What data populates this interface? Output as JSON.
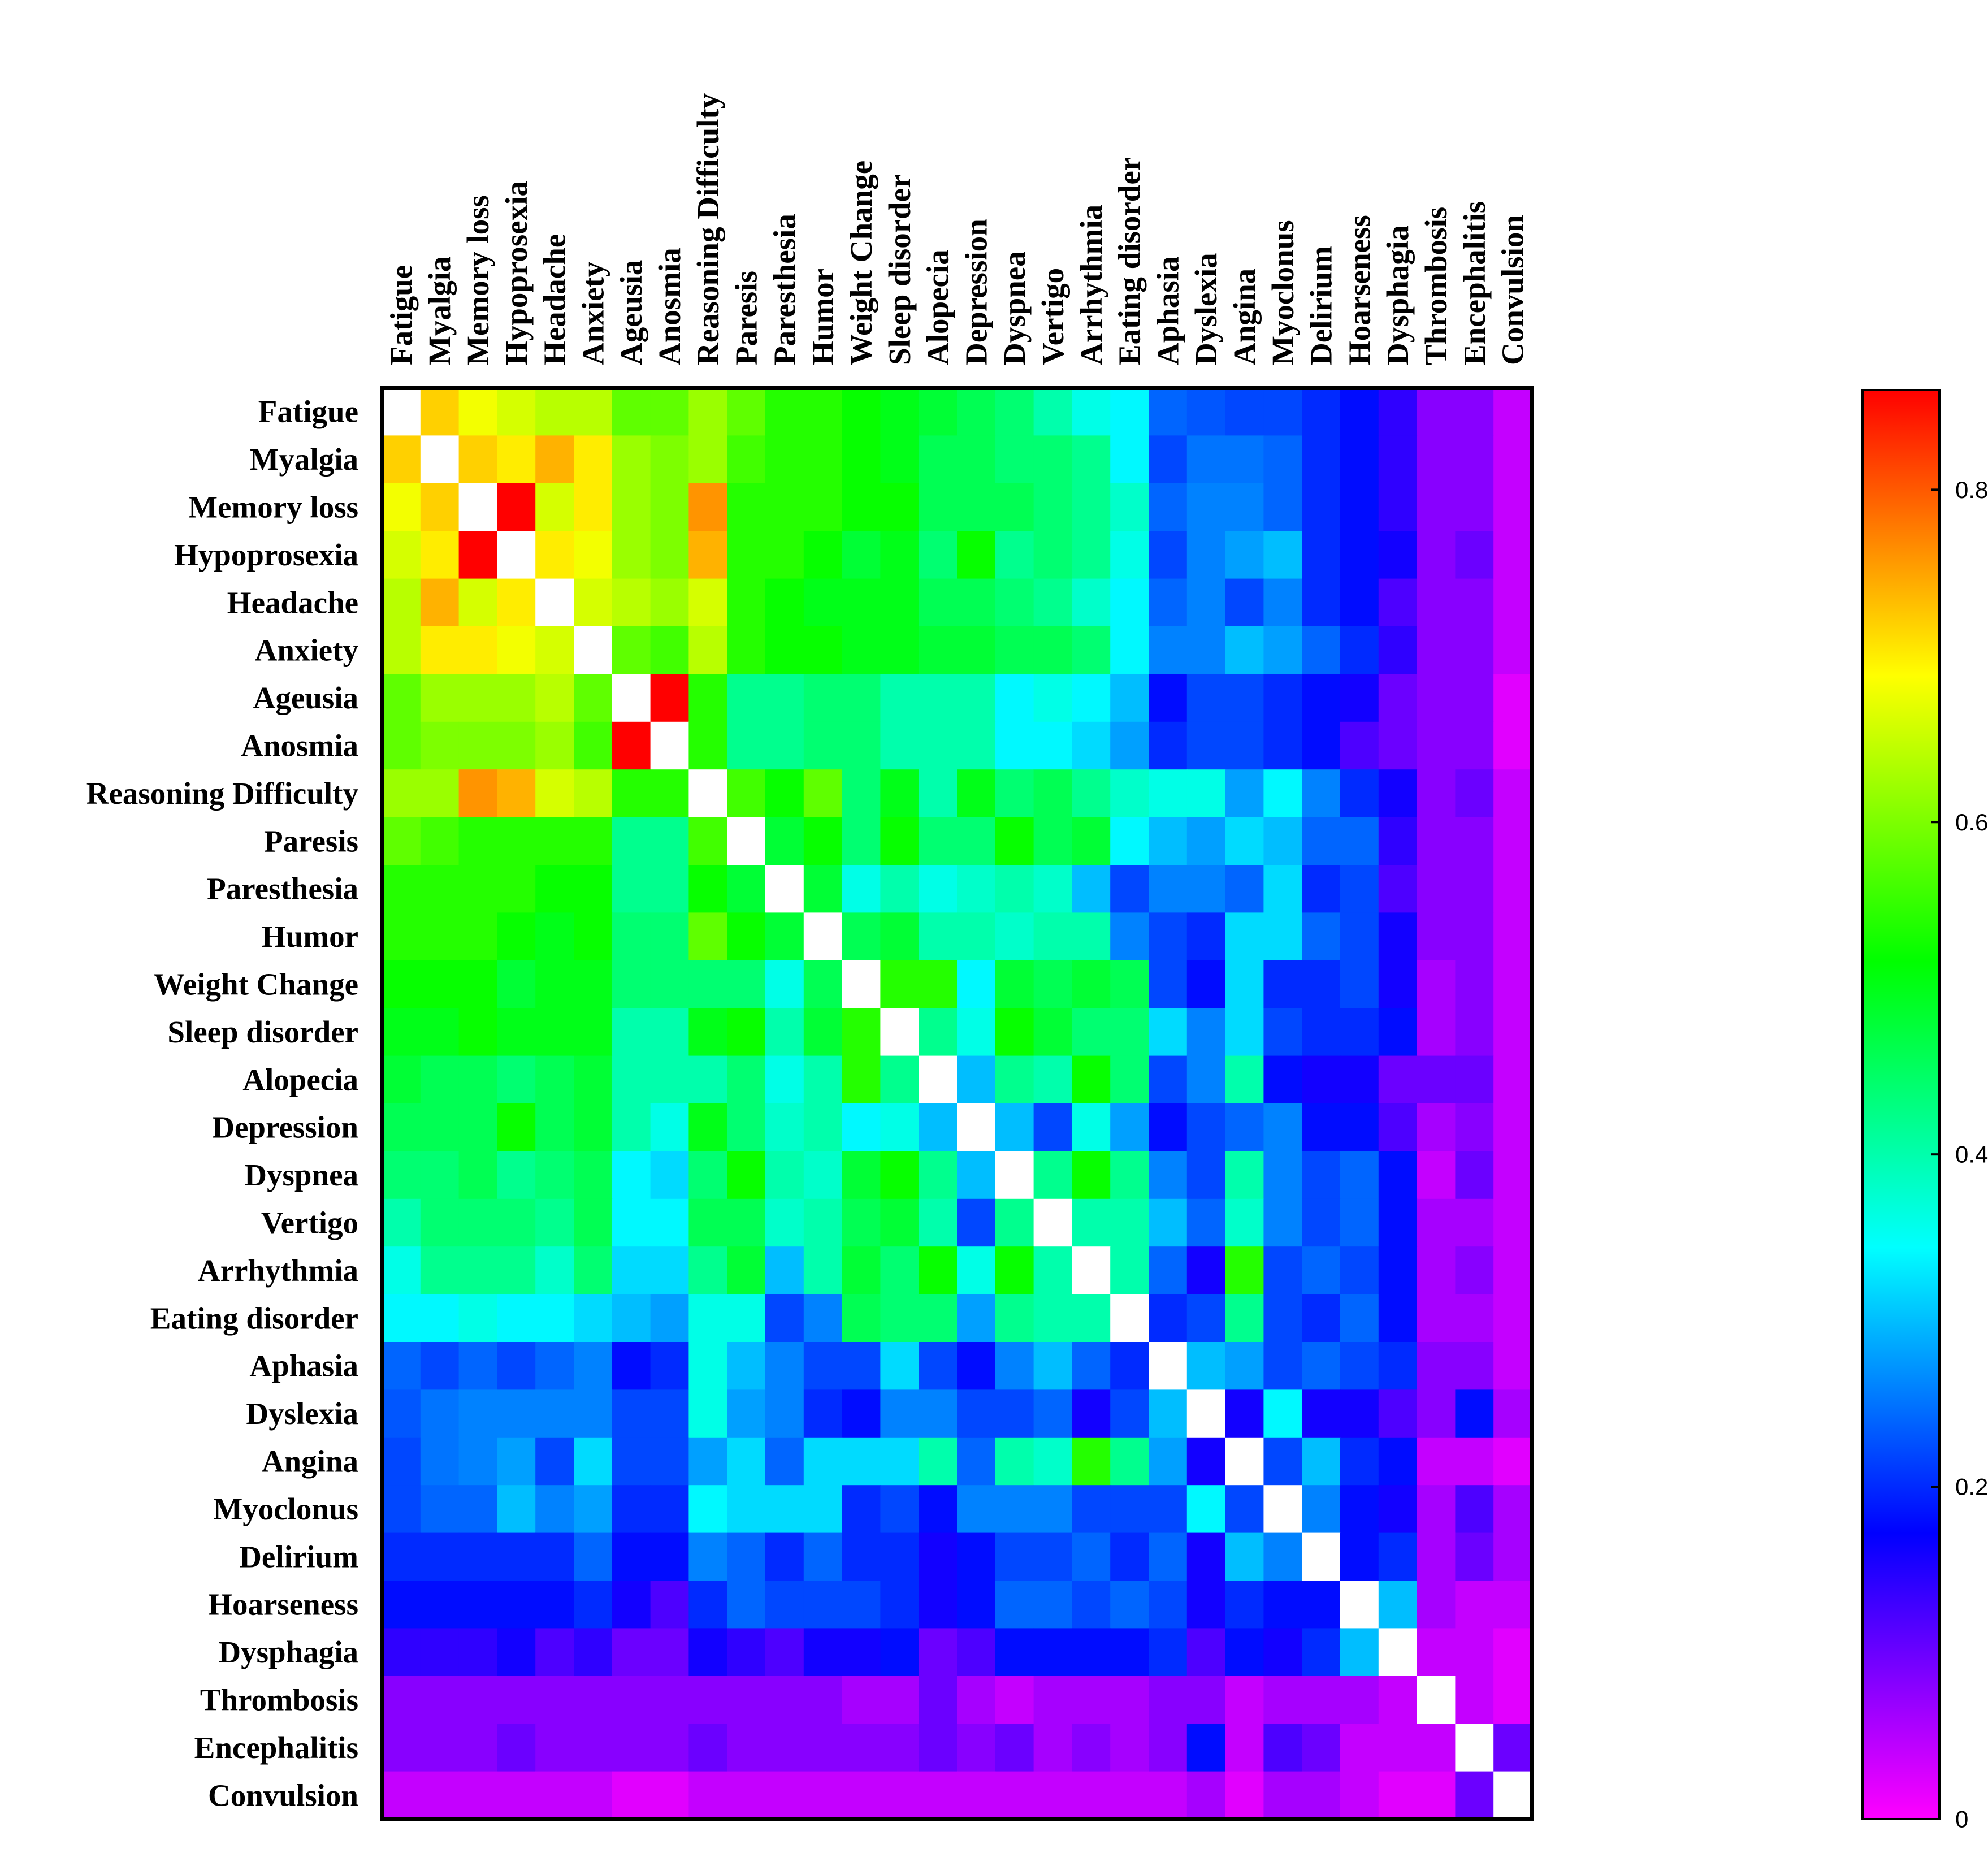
{
  "chart_data": {
    "type": "heatmap",
    "title": "",
    "xlabel": "",
    "ylabel": "",
    "labels": [
      "Fatigue",
      "Myalgia",
      "Memory loss",
      "Hypoprosexia",
      "Headache",
      "Anxiety",
      "Ageusia",
      "Anosmia",
      "Reasoning Difficulty",
      "Paresis",
      "Paresthesia",
      "Humor",
      "Weight Change",
      "Sleep disorder",
      "Alopecia",
      "Depression",
      "Dyspnea",
      "Vertigo",
      "Arrhythmia",
      "Eating disorder",
      "Aphasia",
      "Dyslexia",
      "Angina",
      "Myoclonus",
      "Delirium",
      "Hoarseness",
      "Dysphagia",
      "Thrombosis",
      "Encephalitis",
      "Convulsion"
    ],
    "diagonal": "blank",
    "colorbar": {
      "range": [
        0,
        0.86
      ],
      "ticks": [
        0,
        0.2,
        0.4,
        0.6,
        0.8
      ],
      "tick_labels": [
        "0",
        "0.2",
        "0.4",
        "0.6",
        "0.8"
      ],
      "colormap": [
        "#ff00ff",
        "#0000ff",
        "#00ffff",
        "#00ff00",
        "#ffff00",
        "#ff0000"
      ]
    },
    "values": [
      [
        null,
        0.72,
        0.68,
        0.66,
        0.64,
        0.64,
        0.58,
        0.58,
        0.62,
        0.58,
        0.54,
        0.54,
        0.52,
        0.5,
        0.48,
        0.46,
        0.44,
        0.4,
        0.36,
        0.34,
        0.24,
        0.23,
        0.22,
        0.22,
        0.2,
        0.18,
        0.14,
        0.08,
        0.08,
        0.04
      ],
      [
        0.72,
        null,
        0.72,
        0.7,
        0.74,
        0.7,
        0.62,
        0.6,
        0.62,
        0.56,
        0.54,
        0.54,
        0.52,
        0.5,
        0.46,
        0.46,
        0.44,
        0.44,
        0.42,
        0.34,
        0.22,
        0.25,
        0.25,
        0.24,
        0.2,
        0.18,
        0.14,
        0.08,
        0.08,
        0.04
      ],
      [
        0.68,
        0.72,
        null,
        0.86,
        0.66,
        0.7,
        0.62,
        0.6,
        0.76,
        0.54,
        0.54,
        0.54,
        0.52,
        0.52,
        0.46,
        0.46,
        0.46,
        0.44,
        0.42,
        0.38,
        0.24,
        0.26,
        0.26,
        0.24,
        0.2,
        0.18,
        0.14,
        0.08,
        0.08,
        0.04
      ],
      [
        0.66,
        0.7,
        0.86,
        null,
        0.7,
        0.68,
        0.62,
        0.6,
        0.74,
        0.54,
        0.54,
        0.52,
        0.48,
        0.5,
        0.44,
        0.52,
        0.42,
        0.44,
        0.42,
        0.36,
        0.22,
        0.26,
        0.28,
        0.3,
        0.2,
        0.18,
        0.16,
        0.08,
        0.1,
        0.04
      ],
      [
        0.64,
        0.74,
        0.66,
        0.7,
        null,
        0.66,
        0.64,
        0.62,
        0.66,
        0.54,
        0.52,
        0.5,
        0.5,
        0.5,
        0.46,
        0.46,
        0.44,
        0.42,
        0.38,
        0.34,
        0.24,
        0.26,
        0.22,
        0.26,
        0.2,
        0.18,
        0.12,
        0.08,
        0.08,
        0.04
      ],
      [
        0.64,
        0.7,
        0.7,
        0.68,
        0.66,
        null,
        0.58,
        0.56,
        0.64,
        0.54,
        0.52,
        0.52,
        0.5,
        0.5,
        0.48,
        0.48,
        0.46,
        0.46,
        0.44,
        0.34,
        0.26,
        0.26,
        0.3,
        0.28,
        0.24,
        0.2,
        0.14,
        0.08,
        0.08,
        0.04
      ],
      [
        0.58,
        0.62,
        0.62,
        0.62,
        0.64,
        0.58,
        null,
        0.86,
        0.54,
        0.42,
        0.42,
        0.44,
        0.44,
        0.4,
        0.4,
        0.4,
        0.34,
        0.36,
        0.34,
        0.3,
        0.18,
        0.22,
        0.22,
        0.2,
        0.18,
        0.16,
        0.1,
        0.08,
        0.08,
        0.02
      ],
      [
        0.58,
        0.6,
        0.6,
        0.6,
        0.62,
        0.56,
        0.86,
        null,
        0.54,
        0.42,
        0.42,
        0.44,
        0.44,
        0.4,
        0.4,
        0.4,
        0.34,
        0.34,
        0.32,
        0.28,
        0.2,
        0.22,
        0.22,
        0.2,
        0.18,
        0.12,
        0.1,
        0.08,
        0.08,
        0.02
      ],
      [
        0.62,
        0.62,
        0.76,
        0.74,
        0.66,
        0.64,
        0.54,
        0.54,
        null,
        0.56,
        0.52,
        0.58,
        0.44,
        0.5,
        0.4,
        0.5,
        0.44,
        0.46,
        0.42,
        0.38,
        0.36,
        0.36,
        0.28,
        0.34,
        0.26,
        0.2,
        0.16,
        0.08,
        0.1,
        0.04
      ],
      [
        0.58,
        0.56,
        0.54,
        0.54,
        0.54,
        0.54,
        0.42,
        0.42,
        0.56,
        null,
        0.48,
        0.52,
        0.44,
        0.52,
        0.44,
        0.44,
        0.52,
        0.46,
        0.48,
        0.34,
        0.3,
        0.28,
        0.32,
        0.3,
        0.24,
        0.24,
        0.14,
        0.08,
        0.08,
        0.04
      ],
      [
        0.54,
        0.54,
        0.54,
        0.54,
        0.52,
        0.52,
        0.42,
        0.42,
        0.52,
        0.48,
        null,
        0.48,
        0.36,
        0.4,
        0.36,
        0.38,
        0.4,
        0.38,
        0.3,
        0.22,
        0.26,
        0.26,
        0.24,
        0.32,
        0.2,
        0.22,
        0.12,
        0.08,
        0.08,
        0.04
      ],
      [
        0.54,
        0.54,
        0.54,
        0.52,
        0.5,
        0.52,
        0.44,
        0.44,
        0.58,
        0.52,
        0.48,
        null,
        0.46,
        0.48,
        0.4,
        0.4,
        0.38,
        0.4,
        0.4,
        0.26,
        0.22,
        0.2,
        0.32,
        0.32,
        0.24,
        0.22,
        0.16,
        0.08,
        0.08,
        0.04
      ],
      [
        0.52,
        0.52,
        0.52,
        0.48,
        0.5,
        0.5,
        0.44,
        0.44,
        0.44,
        0.44,
        0.36,
        0.46,
        null,
        0.54,
        0.54,
        0.34,
        0.48,
        0.46,
        0.48,
        0.46,
        0.22,
        0.18,
        0.32,
        0.2,
        0.2,
        0.22,
        0.16,
        0.06,
        0.08,
        0.04
      ],
      [
        0.5,
        0.5,
        0.52,
        0.5,
        0.5,
        0.5,
        0.4,
        0.4,
        0.5,
        0.52,
        0.4,
        0.48,
        0.54,
        null,
        0.42,
        0.36,
        0.52,
        0.48,
        0.44,
        0.44,
        0.32,
        0.26,
        0.32,
        0.22,
        0.2,
        0.2,
        0.18,
        0.06,
        0.08,
        0.04
      ],
      [
        0.48,
        0.46,
        0.46,
        0.44,
        0.46,
        0.48,
        0.4,
        0.4,
        0.4,
        0.44,
        0.36,
        0.4,
        0.54,
        0.42,
        null,
        0.3,
        0.42,
        0.4,
        0.52,
        0.44,
        0.22,
        0.26,
        0.4,
        0.18,
        0.16,
        0.16,
        0.1,
        0.1,
        0.1,
        0.04
      ],
      [
        0.46,
        0.46,
        0.46,
        0.52,
        0.46,
        0.48,
        0.4,
        0.36,
        0.5,
        0.44,
        0.38,
        0.4,
        0.34,
        0.36,
        0.3,
        null,
        0.3,
        0.22,
        0.36,
        0.28,
        0.18,
        0.22,
        0.24,
        0.26,
        0.18,
        0.18,
        0.12,
        0.06,
        0.08,
        0.04
      ],
      [
        0.44,
        0.44,
        0.46,
        0.42,
        0.44,
        0.46,
        0.34,
        0.32,
        0.44,
        0.52,
        0.4,
        0.38,
        0.48,
        0.52,
        0.42,
        0.3,
        null,
        0.42,
        0.52,
        0.42,
        0.26,
        0.22,
        0.4,
        0.26,
        0.22,
        0.24,
        0.18,
        0.04,
        0.1,
        0.04
      ],
      [
        0.4,
        0.44,
        0.44,
        0.44,
        0.42,
        0.46,
        0.34,
        0.34,
        0.46,
        0.46,
        0.38,
        0.4,
        0.46,
        0.48,
        0.4,
        0.22,
        0.42,
        null,
        0.4,
        0.4,
        0.3,
        0.24,
        0.38,
        0.26,
        0.22,
        0.24,
        0.18,
        0.06,
        0.06,
        0.04
      ],
      [
        0.36,
        0.42,
        0.42,
        0.42,
        0.38,
        0.44,
        0.32,
        0.32,
        0.42,
        0.48,
        0.3,
        0.4,
        0.48,
        0.44,
        0.52,
        0.36,
        0.52,
        0.4,
        null,
        0.4,
        0.24,
        0.16,
        0.54,
        0.22,
        0.24,
        0.22,
        0.18,
        0.06,
        0.08,
        0.04
      ],
      [
        0.34,
        0.34,
        0.36,
        0.34,
        0.34,
        0.32,
        0.3,
        0.28,
        0.36,
        0.36,
        0.22,
        0.26,
        0.46,
        0.44,
        0.44,
        0.28,
        0.42,
        0.4,
        0.4,
        null,
        0.2,
        0.22,
        0.42,
        0.22,
        0.2,
        0.24,
        0.18,
        0.06,
        0.06,
        0.04
      ],
      [
        0.24,
        0.22,
        0.24,
        0.22,
        0.24,
        0.26,
        0.18,
        0.2,
        0.36,
        0.3,
        0.26,
        0.22,
        0.22,
        0.32,
        0.22,
        0.18,
        0.26,
        0.3,
        0.24,
        0.2,
        null,
        0.3,
        0.28,
        0.22,
        0.24,
        0.22,
        0.2,
        0.08,
        0.08,
        0.04
      ],
      [
        0.23,
        0.25,
        0.26,
        0.26,
        0.26,
        0.26,
        0.22,
        0.22,
        0.36,
        0.28,
        0.26,
        0.2,
        0.18,
        0.26,
        0.26,
        0.22,
        0.22,
        0.24,
        0.16,
        0.22,
        0.3,
        null,
        0.16,
        0.34,
        0.16,
        0.16,
        0.12,
        0.08,
        0.18,
        0.06
      ],
      [
        0.22,
        0.25,
        0.26,
        0.28,
        0.22,
        0.32,
        0.22,
        0.22,
        0.28,
        0.32,
        0.24,
        0.32,
        0.32,
        0.32,
        0.4,
        0.24,
        0.4,
        0.38,
        0.54,
        0.42,
        0.28,
        0.16,
        null,
        0.22,
        0.3,
        0.2,
        0.18,
        0.04,
        0.04,
        0.02
      ],
      [
        0.22,
        0.24,
        0.24,
        0.3,
        0.26,
        0.28,
        0.2,
        0.2,
        0.34,
        0.32,
        0.32,
        0.32,
        0.2,
        0.22,
        0.18,
        0.26,
        0.26,
        0.26,
        0.22,
        0.22,
        0.22,
        0.34,
        0.22,
        null,
        0.26,
        0.18,
        0.16,
        0.06,
        0.12,
        0.06
      ],
      [
        0.2,
        0.2,
        0.2,
        0.2,
        0.2,
        0.24,
        0.18,
        0.18,
        0.26,
        0.24,
        0.2,
        0.24,
        0.2,
        0.2,
        0.16,
        0.18,
        0.22,
        0.22,
        0.24,
        0.2,
        0.24,
        0.16,
        0.3,
        0.26,
        null,
        0.18,
        0.2,
        0.06,
        0.1,
        0.06
      ],
      [
        0.18,
        0.18,
        0.18,
        0.18,
        0.18,
        0.2,
        0.16,
        0.12,
        0.2,
        0.24,
        0.22,
        0.22,
        0.22,
        0.2,
        0.16,
        0.18,
        0.24,
        0.24,
        0.22,
        0.24,
        0.22,
        0.16,
        0.2,
        0.18,
        0.18,
        null,
        0.3,
        0.06,
        0.04,
        0.04
      ],
      [
        0.14,
        0.14,
        0.14,
        0.16,
        0.12,
        0.14,
        0.1,
        0.1,
        0.16,
        0.14,
        0.12,
        0.16,
        0.16,
        0.18,
        0.1,
        0.12,
        0.18,
        0.18,
        0.18,
        0.18,
        0.2,
        0.12,
        0.18,
        0.16,
        0.2,
        0.3,
        null,
        0.04,
        0.04,
        0.02
      ],
      [
        0.08,
        0.08,
        0.08,
        0.08,
        0.08,
        0.08,
        0.08,
        0.08,
        0.08,
        0.08,
        0.08,
        0.08,
        0.06,
        0.06,
        0.1,
        0.06,
        0.04,
        0.06,
        0.06,
        0.06,
        0.08,
        0.08,
        0.04,
        0.06,
        0.06,
        0.06,
        0.04,
        null,
        0.04,
        0.02
      ],
      [
        0.08,
        0.08,
        0.08,
        0.1,
        0.08,
        0.08,
        0.08,
        0.08,
        0.1,
        0.08,
        0.08,
        0.08,
        0.08,
        0.08,
        0.1,
        0.08,
        0.1,
        0.06,
        0.08,
        0.06,
        0.08,
        0.18,
        0.04,
        0.12,
        0.1,
        0.04,
        0.04,
        0.04,
        null,
        0.1
      ],
      [
        0.04,
        0.04,
        0.04,
        0.04,
        0.04,
        0.04,
        0.02,
        0.02,
        0.04,
        0.04,
        0.04,
        0.04,
        0.04,
        0.04,
        0.04,
        0.04,
        0.04,
        0.04,
        0.04,
        0.04,
        0.04,
        0.06,
        0.02,
        0.06,
        0.06,
        0.04,
        0.02,
        0.02,
        0.1,
        null
      ]
    ]
  }
}
